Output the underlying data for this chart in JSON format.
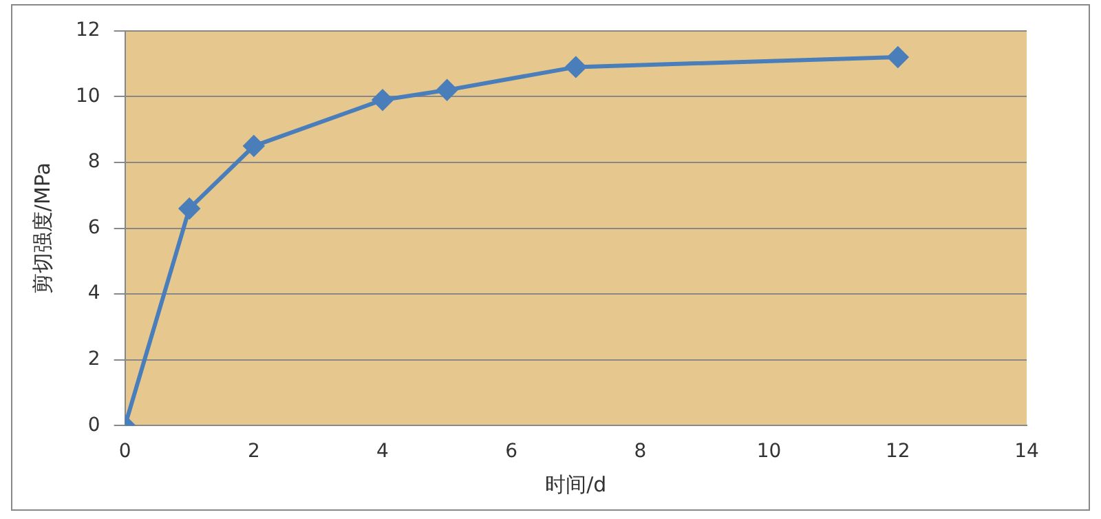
{
  "chart_data": {
    "type": "line",
    "xlabel": "时间/d",
    "ylabel": "剪切强度/MPa",
    "x": [
      0,
      1,
      2,
      4,
      5,
      7,
      12
    ],
    "series": [
      {
        "color": "#4a7ebb",
        "values": [
          0,
          6.6,
          8.5,
          9.9,
          10.2,
          10.9,
          11.2
        ]
      }
    ],
    "xlim": [
      0,
      14
    ],
    "xticks": [
      0,
      2,
      4,
      6,
      8,
      10,
      12,
      14
    ],
    "ylim": [
      0,
      12
    ],
    "yticks": [
      0,
      2,
      4,
      6,
      8,
      10,
      12
    ],
    "grid": "y",
    "legend": false,
    "marker": "diamond",
    "line_style": "solid"
  }
}
